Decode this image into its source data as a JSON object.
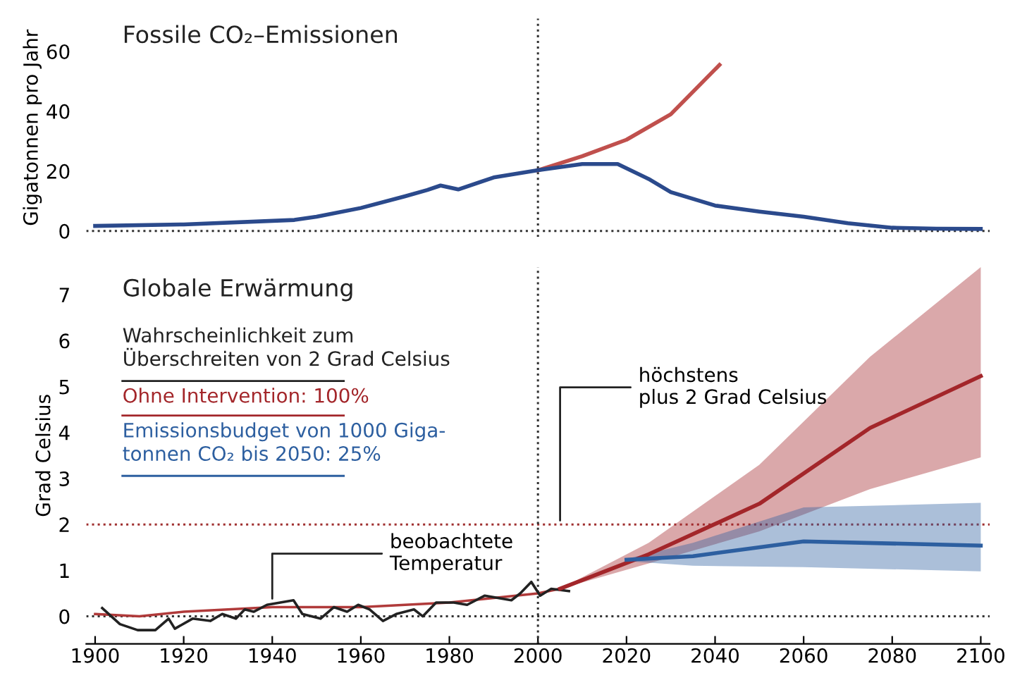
{
  "chart_data": [
    {
      "type": "line",
      "title": "Fossile CO₂–Emissionen",
      "ylabel": "Gigatonnen pro Jahr",
      "xlim": [
        1898,
        2102
      ],
      "ylim": [
        -2,
        71
      ],
      "xticks": [
        1900,
        1920,
        1940,
        1960,
        1980,
        2000,
        2020,
        2040,
        2060,
        2080,
        2100
      ],
      "yticks": [
        0,
        20,
        40,
        60
      ],
      "tick_labels": "y",
      "grid": false,
      "legend": false,
      "ref_lines": [
        {
          "axis": "y",
          "value": 0,
          "color": "#333333",
          "line_style": "dotted"
        },
        {
          "axis": "x",
          "value": 2000,
          "color": "#333333",
          "line_style": "dotted"
        }
      ],
      "series": [
        {
          "type": "line",
          "color": "#c0504d",
          "x": [
            2000,
            2010,
            2020,
            2030,
            2041
          ],
          "values": [
            20.3,
            25,
            30.5,
            39,
            55.5
          ]
        },
        {
          "type": "line",
          "color": "#2b4a8c",
          "x": [
            1900,
            1920,
            1945,
            1950,
            1960,
            1970,
            1975,
            1978,
            1982,
            1990,
            2000,
            2010,
            2018,
            2025,
            2030,
            2040,
            2050,
            2060,
            2070,
            2080,
            2090,
            2100
          ],
          "values": [
            1.7,
            2.2,
            3.7,
            4.8,
            7.7,
            11.6,
            13.7,
            15.2,
            13.9,
            17.9,
            20.3,
            22.4,
            22.4,
            17.4,
            13,
            8.5,
            6.5,
            4.8,
            2.6,
            1.1,
            0.8,
            0.7
          ]
        }
      ]
    },
    {
      "type": "line",
      "title": "Globale Erwärmung",
      "ylabel": "Grad Celsius",
      "legend_title": "Wahrscheinlichkeit zum\nÜberschreiten von 2 Grad Celsius",
      "legend": "top left",
      "xlim": [
        1898,
        2102
      ],
      "ylim": [
        -0.6,
        7.6
      ],
      "xticks": [
        1900,
        1920,
        1940,
        1960,
        1980,
        2000,
        2020,
        2040,
        2060,
        2080,
        2100
      ],
      "yticks": [
        0,
        1,
        2,
        3,
        4,
        5,
        6,
        7
      ],
      "grid": false,
      "ref_lines": [
        {
          "axis": "y",
          "value": 0,
          "color": "#333333",
          "line_style": "dotted"
        },
        {
          "axis": "y",
          "value": 2,
          "color": "#a03030",
          "line_style": "dotted"
        },
        {
          "axis": "x",
          "value": 2000,
          "color": "#333333",
          "line_style": "dotted"
        }
      ],
      "annotations": [
        {
          "text": "beobachtete\nTemperatur",
          "x": 1940,
          "y": 0.3
        },
        {
          "text": "höchstens\nplus 2 Grad Celsius",
          "x": 2005,
          "y": 2
        }
      ],
      "series": [
        {
          "type": "line",
          "name": "Ohne Intervention: 100%",
          "color": "#a3262a",
          "x": [
            2005,
            2025,
            2050,
            2075,
            2100
          ],
          "lower": [
            0.6,
            1.15,
            1.85,
            2.77,
            3.46
          ],
          "upper": [
            0.6,
            1.6,
            3.3,
            5.65,
            7.6
          ],
          "values": [
            0.6,
            1.35,
            2.45,
            4.1,
            5.23
          ]
        },
        {
          "type": "line",
          "name": "Emissionsbudget von 1000 Giga-\ntonnen CO₂ bis 2050: 25%",
          "color": "#2d5fa0",
          "x": [
            2020,
            2035,
            2060,
            2100
          ],
          "lower": [
            1.2,
            1.1,
            1.07,
            0.98
          ],
          "upper": [
            1.25,
            1.6,
            2.37,
            2.47
          ],
          "values": [
            1.23,
            1.31,
            1.63,
            1.54
          ]
        },
        {
          "type": "line",
          "color": "#b03a3a",
          "x": [
            1900,
            1910,
            1920,
            1940,
            1960,
            1980,
            2000,
            2005
          ],
          "values": [
            0.05,
            0.0,
            0.1,
            0.2,
            0.2,
            0.3,
            0.5,
            0.6
          ]
        },
        {
          "type": "line",
          "color": "#222222",
          "x": [
            1901.6,
            1905.6,
            1909.6,
            1913.6,
            1916.6,
            1918,
            1922,
            1926,
            1928.7,
            1931.8,
            1933.8,
            1935.8,
            1938.8,
            1941.8,
            1944.8,
            1946.8,
            1950.9,
            1953.9,
            1956.9,
            1959.4,
            1962,
            1965,
            1968,
            1972,
            1974,
            1977,
            1981,
            1984,
            1988,
            1991,
            1994,
            1996,
            1998.5,
            2000.5,
            2003,
            2007
          ],
          "values": [
            0.18,
            -0.17,
            -0.3,
            -0.3,
            -0.05,
            -0.27,
            -0.05,
            -0.1,
            0.05,
            -0.05,
            0.15,
            0.1,
            0.25,
            0.3,
            0.35,
            0.05,
            -0.05,
            0.2,
            0.1,
            0.25,
            0.15,
            -0.1,
            0.05,
            0.15,
            0.0,
            0.3,
            0.3,
            0.25,
            0.45,
            0.4,
            0.35,
            0.5,
            0.75,
            0.45,
            0.6,
            0.55
          ]
        }
      ]
    }
  ]
}
